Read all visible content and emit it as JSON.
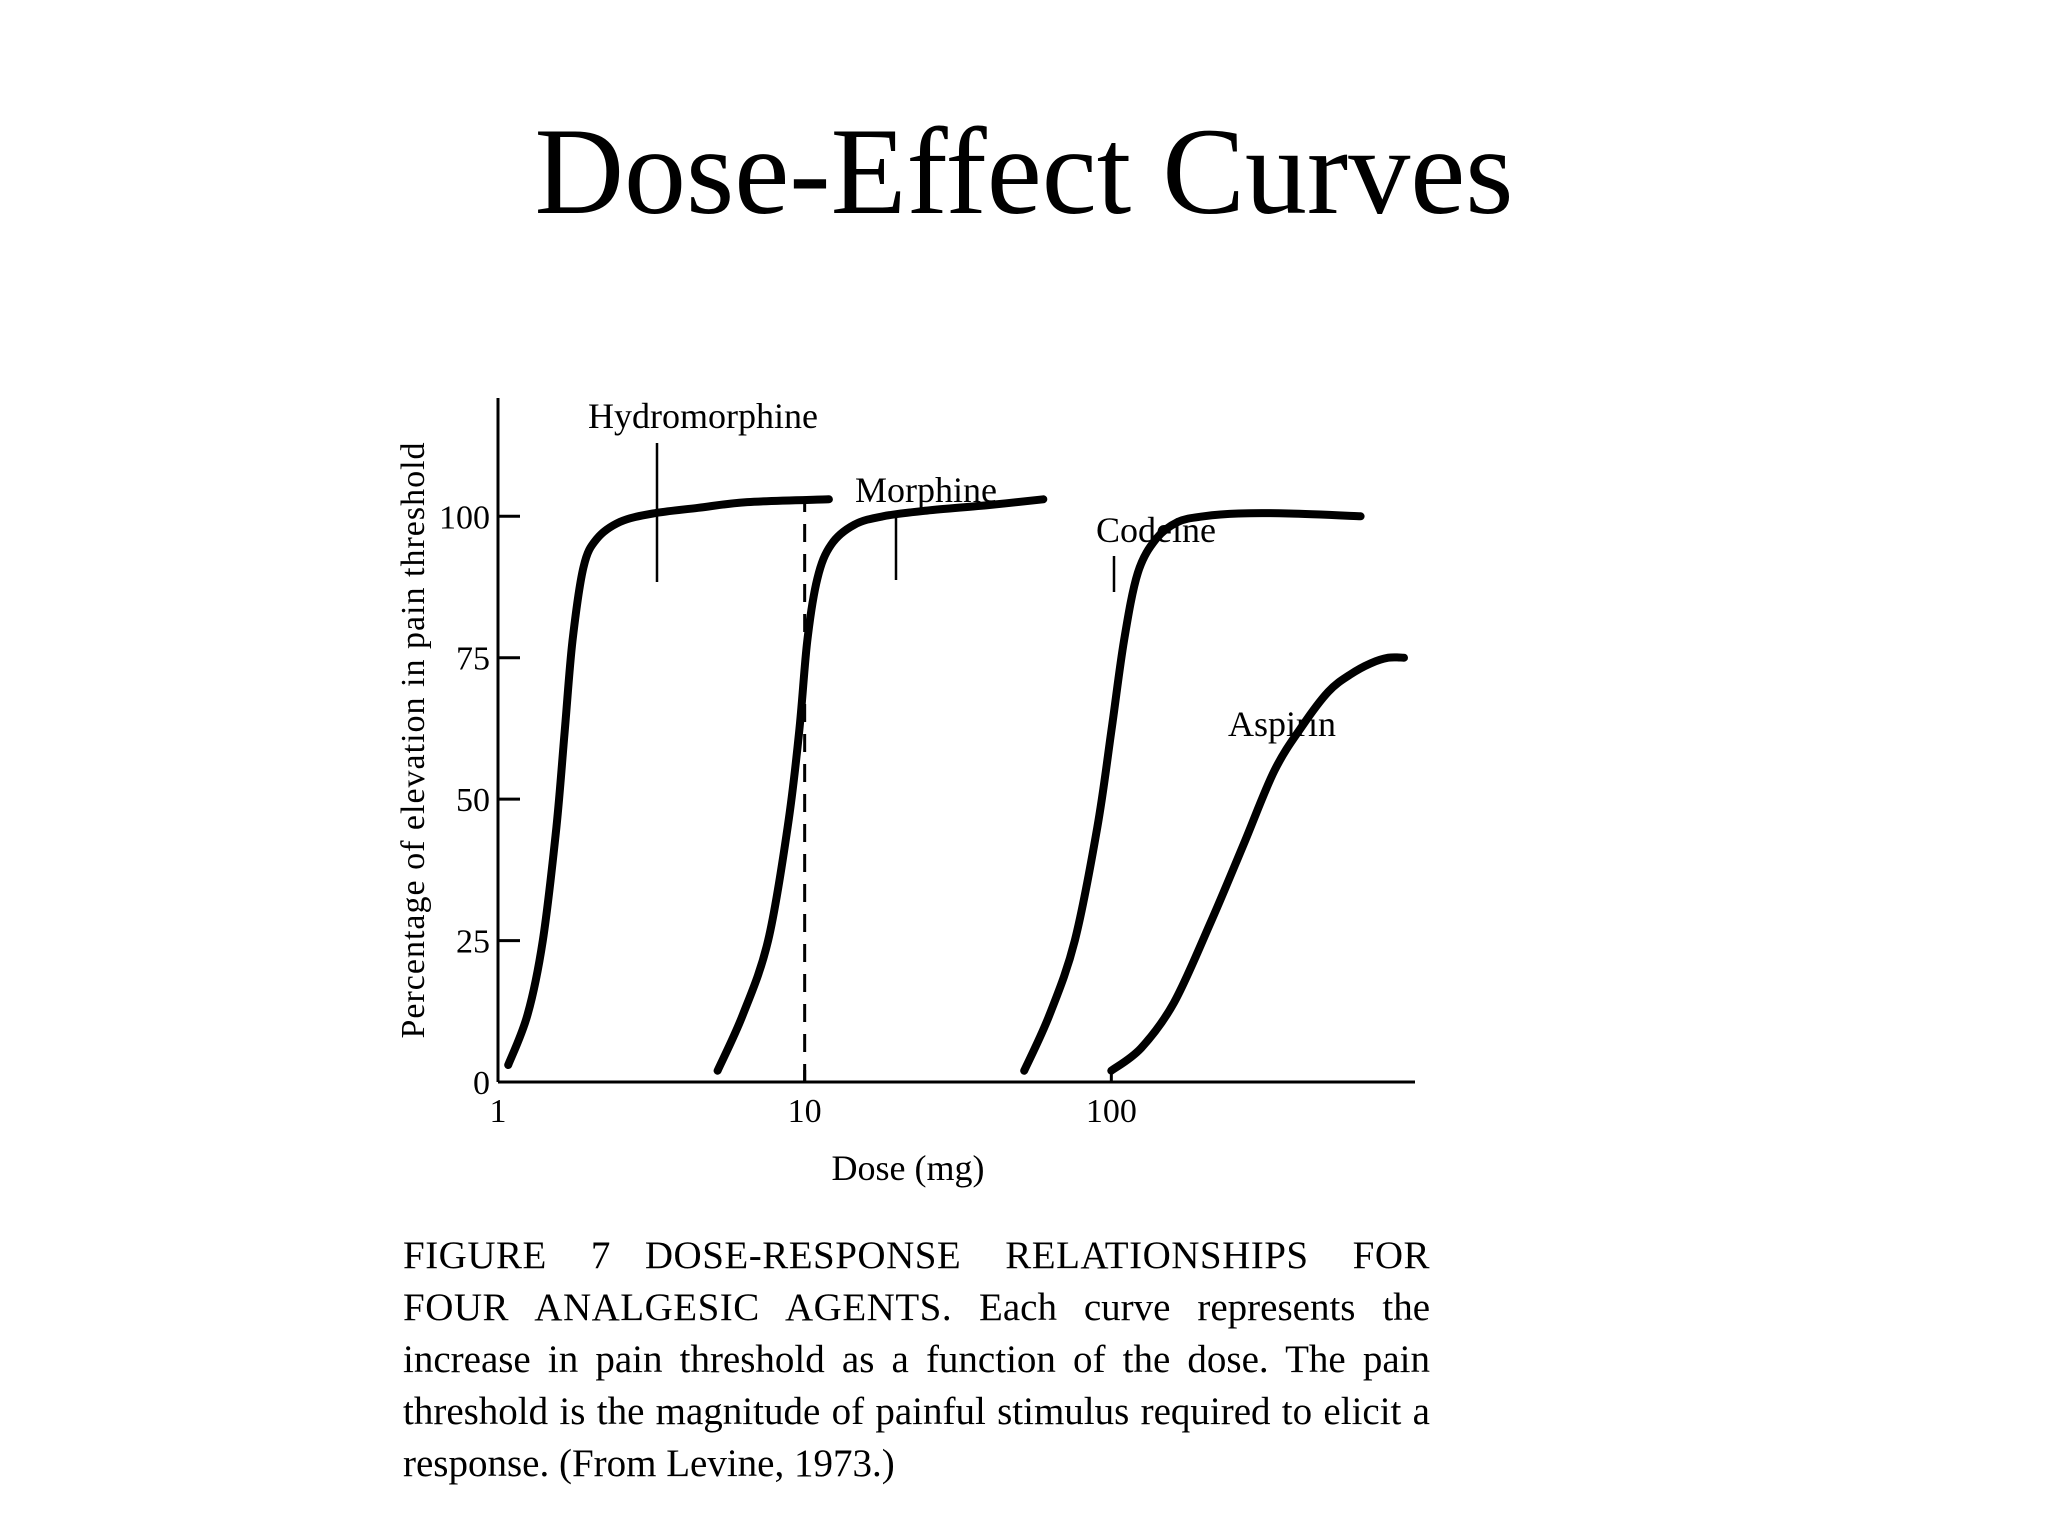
{
  "slide": {
    "title": "Dose-Effect Curves"
  },
  "chart_data": {
    "type": "line",
    "title": "",
    "xlabel": "Dose (mg)",
    "ylabel": "Percentage of elevation in pain threshold",
    "x_scale": "log",
    "xlim": [
      1,
      1000
    ],
    "ylim": [
      0,
      140
    ],
    "x_ticks": [
      {
        "value": 1,
        "label": "1"
      },
      {
        "value": 10,
        "label": "10"
      },
      {
        "value": 100,
        "label": "100"
      }
    ],
    "y_ticks": [
      {
        "value": 0,
        "label": "0"
      },
      {
        "value": 25,
        "label": "25"
      },
      {
        "value": 50,
        "label": "50"
      },
      {
        "value": 75,
        "label": "75"
      },
      {
        "value": 100,
        "label": "100"
      }
    ],
    "grid": false,
    "legend": "none",
    "series": [
      {
        "name": "Hydromorphine",
        "x": [
          1.08,
          1.25,
          1.4,
          1.55,
          1.65,
          1.75,
          1.9,
          2.1,
          2.5,
          3.2,
          4.5,
          6.5,
          12
        ],
        "y": [
          3,
          12,
          25,
          45,
          62,
          78,
          91,
          96,
          99,
          100.5,
          101.5,
          102.5,
          103
        ]
      },
      {
        "name": "Morphine",
        "x": [
          5.2,
          6.3,
          7.6,
          8.8,
          9.6,
          10.2,
          11,
          12.2,
          14.5,
          18,
          25,
          40,
          60
        ],
        "y": [
          2,
          12,
          25,
          45,
          62,
          78,
          89,
          95,
          98.5,
          100,
          101,
          102,
          103
        ]
      },
      {
        "name": "Codeine",
        "x": [
          52,
          63,
          76,
          90,
          100,
          110,
          122,
          140,
          165,
          200,
          260,
          380,
          650
        ],
        "y": [
          2,
          12,
          25,
          45,
          62,
          78,
          90,
          96,
          99,
          100,
          100.5,
          100.5,
          100
        ]
      },
      {
        "name": "Aspirin",
        "x": [
          100,
          125,
          160,
          210,
          270,
          340,
          420,
          510,
          600,
          700,
          800,
          900
        ],
        "y": [
          2,
          6,
          14,
          28,
          42,
          55,
          63,
          69,
          72,
          74,
          75,
          75
        ]
      }
    ],
    "annotations": [
      {
        "text": "Hydromorphine",
        "points_to": {
          "x": 5.4,
          "y": 102
        }
      },
      {
        "text": "Morphine",
        "points_to": {
          "x": 40,
          "y": 102
        }
      },
      {
        "text": "Codeine",
        "points_to": {
          "x": 300,
          "y": 100.5
        }
      },
      {
        "text": "Aspirin",
        "points_to": {
          "x": 900,
          "y": 75
        }
      }
    ],
    "reference_line": {
      "x": 10,
      "style": "dashed",
      "from_y": 0,
      "to_y": 103
    }
  },
  "caption": {
    "label": "FIGURE 7",
    "heading": "DOSE-RESPONSE RELATIONSHIPS FOR FOUR ANALGESIC AGENTS.",
    "body": "Each curve represents the increase in pain threshold as a function of the dose. The pain threshold is the magnitude of painful stimulus required to elicit a response. (From Levine, 1973.)"
  }
}
